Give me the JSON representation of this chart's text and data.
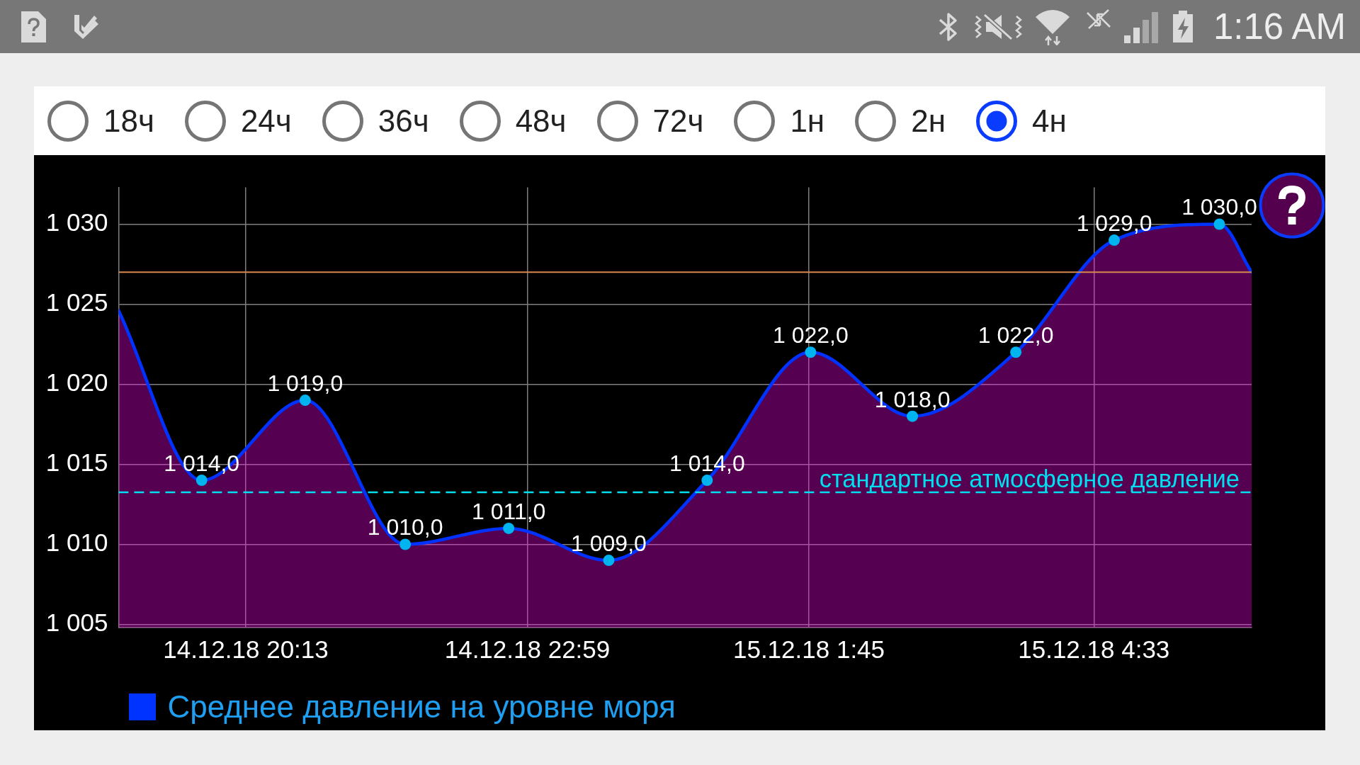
{
  "chart_data": {
    "type": "area",
    "annotations": [
      "1:16 AM",
      "18ч",
      "24ч",
      "36ч",
      "48ч",
      "72ч",
      "1н",
      "2н",
      "4н"
    ],
    "x": [
      "--12-14T18:58",
      "--12-14T19:47",
      "--12-14T20:48",
      "--12-14T21:47",
      "--12-14T22:48",
      "--12-14T23:47",
      "--12-15T00:45",
      "--12-15T01:46",
      "--12-15T02:46",
      "--12-15T03:47",
      "--12-15T04:45",
      "--12-15T05:47",
      "--12-15T06:06"
    ],
    "series": [
      {
        "type": "line",
        "name": "Среднее давление на уровне моря",
        "color": "#0033ff",
        "marker": "circle",
        "values": [
          1024.6,
          1014,
          1019,
          1010,
          1011,
          1009,
          1014,
          1022,
          1018,
          1022,
          1029,
          1030,
          1027
        ],
        "value_labels": [
          null,
          "1 014,0",
          "1 019,0",
          "1 010,0",
          "1 011,0",
          "1 009,0",
          "1 014,0",
          "1 022,0",
          "1 018,0",
          "1 022,0",
          "1 029,0",
          "1 030,0",
          null
        ]
      },
      {
        "color": "#ff00f0",
        "values": [
          1024.6,
          1014,
          1019,
          1010,
          1011,
          1009,
          1014,
          1022,
          1018,
          1022,
          1029,
          1030,
          1027
        ]
      }
    ],
    "xlim": [
      "--12-14T18:58",
      "--12-15T06:06"
    ],
    "xticks": [
      {
        "value": "--12-14T20:13",
        "label": "14.12.18 20:13"
      },
      {
        "value": "--12-14T22:59",
        "label": "14.12.18 22:59"
      },
      {
        "value": "--12-15T01:45",
        "label": "15.12.18 1:45"
      },
      {
        "value": "--12-15T04:33",
        "label": "15.12.18 4:33"
      }
    ],
    "ylim": [
      1004.8,
      1032.3
    ],
    "yticks": [
      {
        "value": 1005,
        "label": "1 005"
      },
      {
        "value": 1010,
        "label": "1 010"
      },
      {
        "value": 1015,
        "label": "1 015"
      },
      {
        "value": 1020,
        "label": "1 020"
      },
      {
        "value": 1025,
        "label": "1 025"
      },
      {
        "value": 1030,
        "label": "1 030"
      }
    ],
    "ref_lines": [
      {
        "axis": "y",
        "value": 1027,
        "color": "#d4894f"
      },
      {
        "axis": "y",
        "value": 1013.25,
        "label": "стандартное атмосферное давление",
        "color": "#00e0f0",
        "line_style": "dashed"
      }
    ],
    "grid": true,
    "legend": "bottom left"
  }
}
